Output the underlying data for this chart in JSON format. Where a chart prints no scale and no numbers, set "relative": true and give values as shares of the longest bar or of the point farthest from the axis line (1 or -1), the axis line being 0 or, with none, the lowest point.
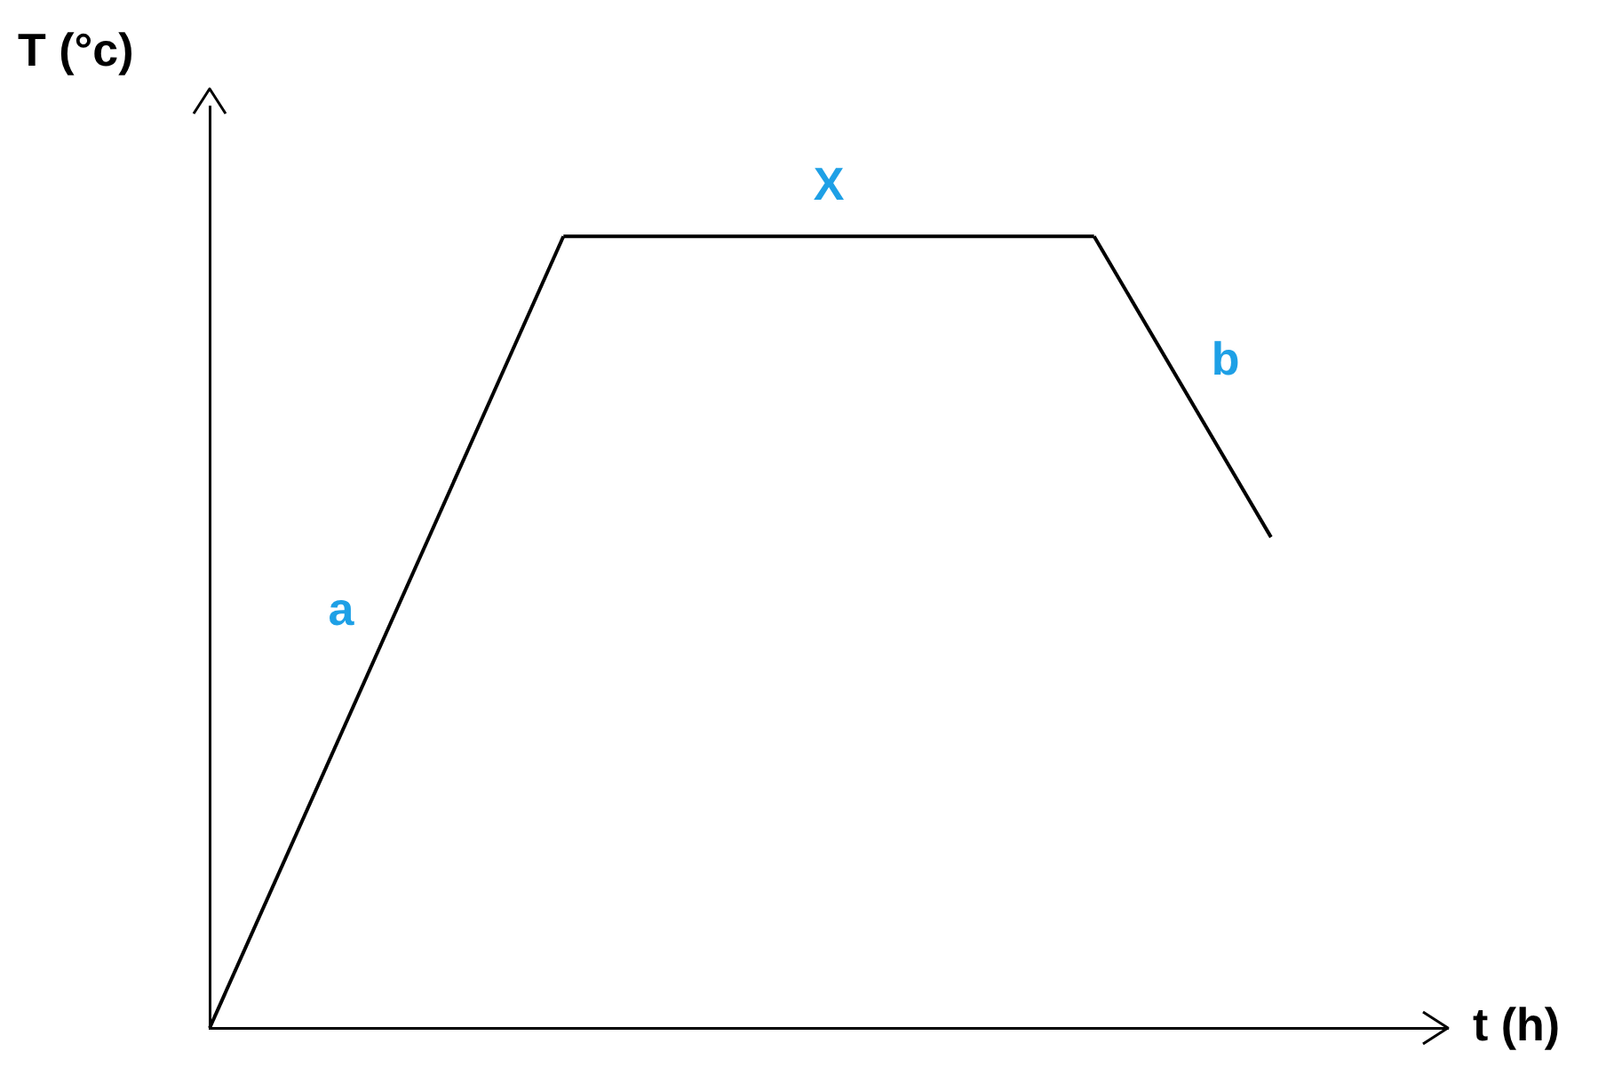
{
  "chart_data": {
    "type": "line",
    "relative": true,
    "xlabel": "t (h)",
    "ylabel": "T (°c)",
    "categories": [
      null,
      null,
      null,
      null,
      null,
      null,
      null,
      null
    ],
    "series": [
      {
        "name": "a",
        "color": "#000000",
        "values": [
          0,
          null,
          1,
          null,
          null,
          null,
          null,
          null
        ]
      },
      {
        "name": "X",
        "color": "#000000",
        "values": [
          null,
          null,
          1,
          null,
          null,
          1,
          null,
          null
        ]
      },
      {
        "name": "b",
        "color": "#000000",
        "values": [
          null,
          null,
          null,
          null,
          null,
          1,
          0.62,
          null
        ]
      }
    ],
    "grid": false,
    "legend": false,
    "marker": "none",
    "line_style": "solid"
  }
}
